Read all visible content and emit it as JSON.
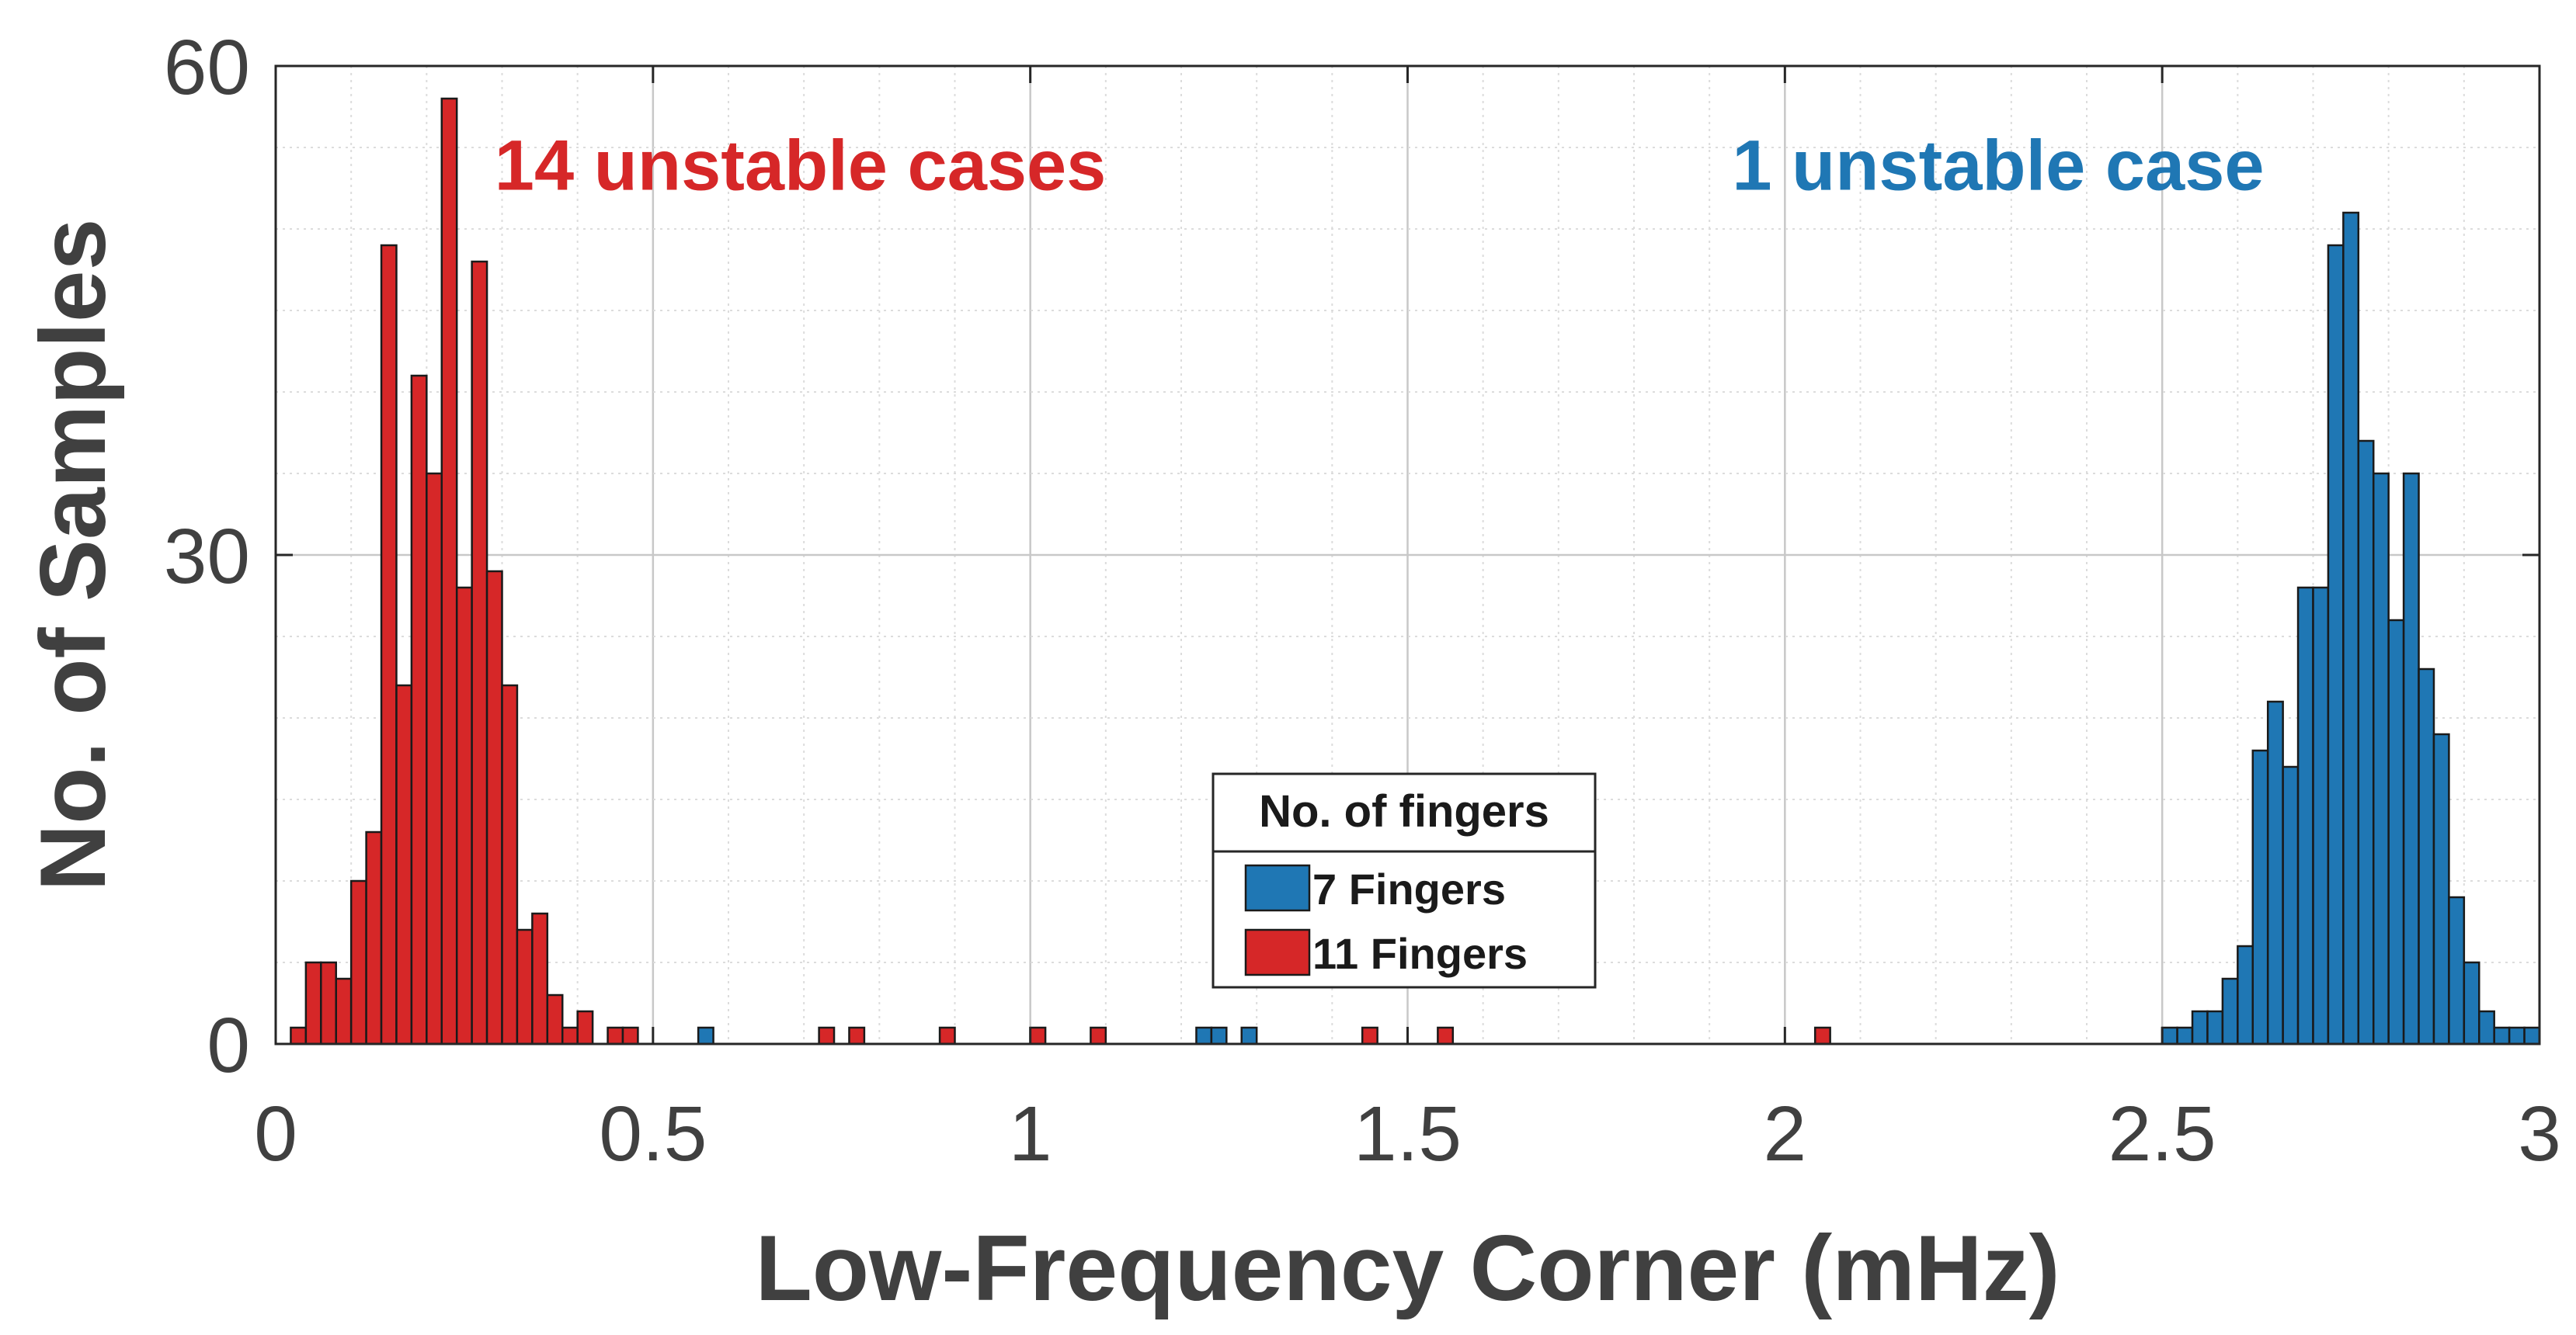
{
  "chart_data": {
    "type": "bar",
    "title": "",
    "xlabel": "Low-Frequency Corner (mHz)",
    "ylabel": "No. of Samples",
    "xlim": [
      0,
      3
    ],
    "ylim": [
      0,
      60
    ],
    "x_ticks": [
      0,
      0.5,
      1,
      1.5,
      2,
      2.5,
      3
    ],
    "x_tick_labels": [
      "0",
      "0.5",
      "1",
      "1.5",
      "2",
      "2.5",
      "3"
    ],
    "y_ticks": [
      0,
      30,
      60
    ],
    "y_tick_labels": [
      "0",
      "30",
      "60"
    ],
    "minor_grid_step_x": 0.1,
    "minor_grid_step_y": 5,
    "grid": true,
    "bin_width": 0.02,
    "legend": {
      "title": "No. of fingers",
      "placement": "bottom-center"
    },
    "annotations": [
      {
        "text": "14 unstable cases",
        "x": 0.29,
        "y": 52.4,
        "color": "#d62728"
      },
      {
        "text": "1 unstable case",
        "x": 1.93,
        "y": 52.4,
        "color": "#1f77b4"
      }
    ],
    "series": [
      {
        "name": "7 Fingers",
        "color": "#1f77b4",
        "bins": [
          [
            0.57,
            1
          ],
          [
            1.23,
            1
          ],
          [
            1.25,
            1
          ],
          [
            1.29,
            1
          ],
          [
            2.51,
            1
          ],
          [
            2.53,
            1
          ],
          [
            2.55,
            2
          ],
          [
            2.57,
            2
          ],
          [
            2.59,
            4
          ],
          [
            2.61,
            6
          ],
          [
            2.63,
            18
          ],
          [
            2.65,
            21
          ],
          [
            2.67,
            17
          ],
          [
            2.69,
            28
          ],
          [
            2.71,
            28
          ],
          [
            2.73,
            49
          ],
          [
            2.75,
            51
          ],
          [
            2.77,
            37
          ],
          [
            2.79,
            35
          ],
          [
            2.81,
            26
          ],
          [
            2.83,
            35
          ],
          [
            2.85,
            23
          ],
          [
            2.87,
            19
          ],
          [
            2.89,
            9
          ],
          [
            2.91,
            5
          ],
          [
            2.93,
            2
          ],
          [
            2.95,
            1
          ],
          [
            2.97,
            1
          ],
          [
            2.99,
            1
          ]
        ]
      },
      {
        "name": "11 Fingers",
        "color": "#d62728",
        "bins": [
          [
            0.03,
            1
          ],
          [
            0.05,
            5
          ],
          [
            0.07,
            5
          ],
          [
            0.09,
            4
          ],
          [
            0.11,
            10
          ],
          [
            0.13,
            13
          ],
          [
            0.15,
            49
          ],
          [
            0.17,
            22
          ],
          [
            0.19,
            41
          ],
          [
            0.21,
            35
          ],
          [
            0.23,
            58
          ],
          [
            0.25,
            28
          ],
          [
            0.27,
            48
          ],
          [
            0.29,
            29
          ],
          [
            0.31,
            22
          ],
          [
            0.33,
            7
          ],
          [
            0.35,
            8
          ],
          [
            0.37,
            3
          ],
          [
            0.39,
            1
          ],
          [
            0.41,
            2
          ],
          [
            0.45,
            1
          ],
          [
            0.47,
            1
          ],
          [
            0.73,
            1
          ],
          [
            0.77,
            1
          ],
          [
            0.89,
            1
          ],
          [
            1.01,
            1
          ],
          [
            1.09,
            1
          ],
          [
            1.45,
            1
          ],
          [
            1.55,
            1
          ],
          [
            2.05,
            1
          ]
        ]
      }
    ]
  }
}
